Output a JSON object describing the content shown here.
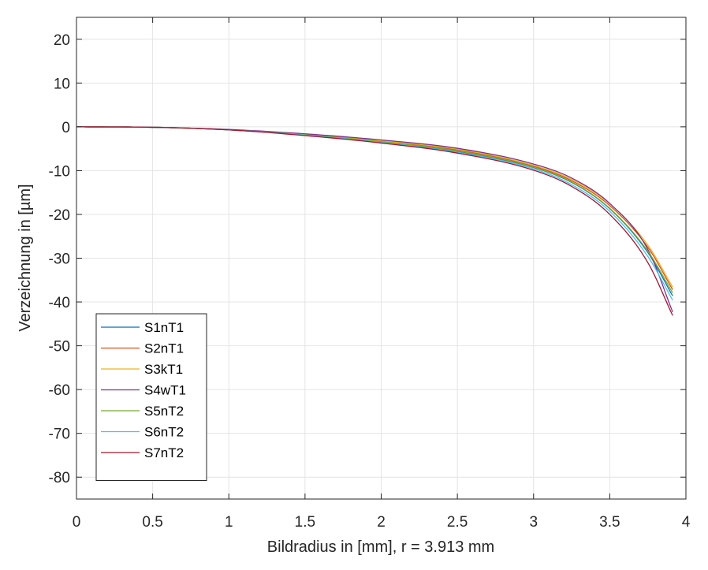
{
  "chart_data": {
    "type": "line",
    "title": "",
    "xlabel": "Bildradius in [mm], r = 3.913 mm",
    "ylabel": "Verzeichnung in [µm]",
    "xlim": [
      0,
      4
    ],
    "ylim": [
      -85,
      25
    ],
    "xticks": [
      0,
      0.5,
      1,
      1.5,
      2,
      2.5,
      3,
      3.5,
      4
    ],
    "xtick_labels": [
      "0",
      "0.5",
      "1",
      "1.5",
      "2",
      "2.5",
      "3",
      "3.5",
      "4"
    ],
    "yticks": [
      20,
      10,
      0,
      -10,
      -20,
      -30,
      -40,
      -50,
      -60,
      -70,
      -80
    ],
    "ytick_labels": [
      "20",
      "10",
      "0",
      "-10",
      "-20",
      "-30",
      "-40",
      "-50",
      "-60",
      "-70",
      "-80"
    ],
    "grid": true,
    "legend_position": "bottom-left",
    "x": [
      0,
      0.5,
      1,
      1.5,
      2,
      2.5,
      3,
      3.25,
      3.5,
      3.75,
      3.913
    ],
    "series": [
      {
        "name": "S1nT1",
        "color": "#0072BD",
        "values": [
          0,
          -0.1,
          -0.7,
          -1.9,
          -3.5,
          -5.6,
          -9.3,
          -12.7,
          -18.7,
          -28.7,
          -38.6
        ]
      },
      {
        "name": "S2nT1",
        "color": "#D95319",
        "values": [
          0,
          -0.1,
          -0.7,
          -1.8,
          -3.3,
          -5.3,
          -9.0,
          -12.3,
          -18.0,
          -27.5,
          -37.2
        ]
      },
      {
        "name": "S3kT1",
        "color": "#EDB120",
        "values": [
          0,
          -0.1,
          -0.7,
          -1.7,
          -3.2,
          -5.1,
          -8.8,
          -12.0,
          -17.6,
          -27.0,
          -36.6
        ]
      },
      {
        "name": "S4wT1",
        "color": "#7E2F8E",
        "values": [
          0,
          -0.1,
          -0.6,
          -1.6,
          -3.0,
          -4.9,
          -8.5,
          -11.7,
          -17.5,
          -28.0,
          -42.3
        ]
      },
      {
        "name": "S5nT2",
        "color": "#77AC30",
        "values": [
          0,
          -0.1,
          -0.7,
          -1.8,
          -3.4,
          -5.5,
          -9.2,
          -12.6,
          -18.6,
          -28.4,
          -37.9
        ]
      },
      {
        "name": "S6nT2",
        "color": "#4DBEEE",
        "values": [
          0,
          -0.1,
          -0.7,
          -1.9,
          -3.6,
          -5.8,
          -9.6,
          -13.2,
          -19.3,
          -29.6,
          -39.6
        ]
      },
      {
        "name": "S7nT2",
        "color": "#A2142F",
        "values": [
          0,
          -0.1,
          -0.7,
          -2.0,
          -3.7,
          -6.0,
          -9.9,
          -13.6,
          -20.0,
          -31.0,
          -43.1
        ]
      }
    ]
  }
}
